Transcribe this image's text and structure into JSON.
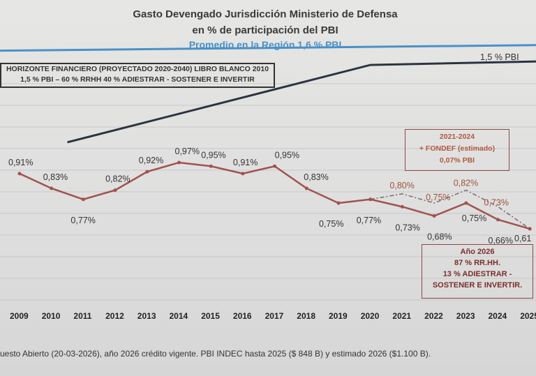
{
  "chart_data": {
    "type": "line",
    "title": "Gasto Devengado Jurisdicción Ministerio de Defensa",
    "subtitle": "en % de participación del PBI",
    "reference_line": {
      "label": "Promedio en la Región 1,6 % PBI",
      "value": 1.6,
      "color": "#4a90c8"
    },
    "categories": [
      "2009",
      "2010",
      "2011",
      "2012",
      "2013",
      "2014",
      "2015",
      "2016",
      "2017",
      "2018",
      "2019",
      "2020",
      "2021",
      "2022",
      "2023",
      "2024",
      "2025"
    ],
    "series": [
      {
        "style": "solid",
        "color": "#a0524e",
        "values": [
          0.91,
          0.83,
          0.77,
          0.82,
          0.92,
          0.97,
          0.95,
          0.91,
          0.95,
          0.83,
          0.75,
          0.77,
          0.73,
          0.68,
          0.75,
          0.66,
          0.61
        ],
        "labels": [
          "0,91%",
          "0,83%",
          "0,77%",
          "0,82%",
          "0,92%",
          "0,97%",
          "0,95%",
          "0,91%",
          "0,95%",
          "0,83%",
          "0,75%",
          "0,77%",
          "0,73%",
          "0,68%",
          "0,75%",
          "0,66%",
          "0,61"
        ]
      },
      {
        "style": "dash-dot",
        "color": "#7a6a6a",
        "x": [
          "2020",
          "2021",
          "2022",
          "2023",
          "2024",
          "2025"
        ],
        "values": [
          0.77,
          0.8,
          0.75,
          0.82,
          0.73,
          0.61
        ],
        "labels": [
          "",
          "0,80%",
          "0,75%",
          "0,82%",
          "0,73%",
          ""
        ]
      },
      {
        "style": "solid",
        "color": "#2a3440",
        "x": [
          2010.5,
          2020,
          2025.5
        ],
        "values": [
          1.08,
          1.5,
          1.52
        ],
        "end_label": "1,5 % PBI"
      }
    ],
    "grid": true,
    "annotations": {
      "horizon": [
        "HORIZONTE FINANCIERO (PROYECTADO 2020-2040) LIBRO BLANCO 2010",
        "1,5 % PBI – 60 % RRHH 40 % ADIESTRAR - SOSTENER E INVERTIR"
      ],
      "fondef": [
        "2021-2024",
        "+ FONDEF  (estimado)",
        "0,07% PBI"
      ],
      "year2026": [
        "Año 2026",
        "87 % RR.HH.",
        "13 % ADIESTRAR -",
        "SOSTENER E INVERTIR."
      ]
    }
  },
  "footer": "uesto Abierto (20-03-2026), año 2026 crédito vigente. PBI INDEC hasta 2025 ($ 848 B)  y estimado 2026 ($1.100 B)."
}
